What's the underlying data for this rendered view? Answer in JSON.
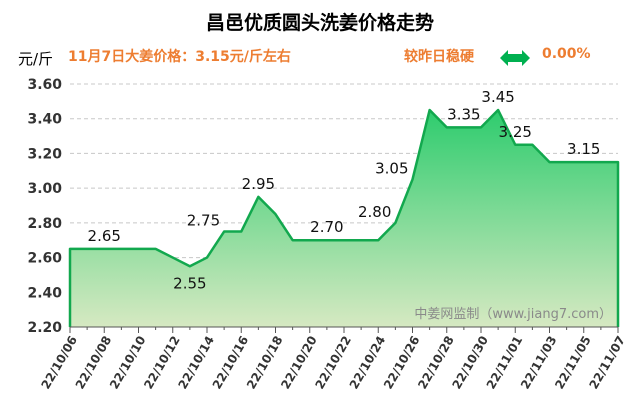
{
  "header": {
    "title": "昌邑优质圆头洗姜价格走势",
    "unit": "元/斤",
    "today_price": "11月7日大姜价格：3.15元/斤左右",
    "compare_text": "较昨日稳硬",
    "change_icon": "left-right-arrow-icon",
    "change_value": "0.00%",
    "accent_color": "#ed7d31",
    "arrow_color": "#00b050"
  },
  "chart_data": {
    "type": "area",
    "title": "昌邑优质圆头洗姜价格走势",
    "ylabel": "元/斤",
    "ylim": [
      2.2,
      3.6
    ],
    "yticks": [
      "2.20",
      "2.40",
      "2.60",
      "2.80",
      "3.00",
      "3.20",
      "3.40",
      "3.60"
    ],
    "grid": true,
    "x": [
      "22/10/06",
      "22/10/07",
      "22/10/08",
      "22/10/09",
      "22/10/10",
      "22/10/11",
      "22/10/12",
      "22/10/13",
      "22/10/14",
      "22/10/15",
      "22/10/16",
      "22/10/17",
      "22/10/18",
      "22/10/19",
      "22/10/20",
      "22/10/21",
      "22/10/22",
      "22/10/23",
      "22/10/24",
      "22/10/25",
      "22/10/26",
      "22/10/27",
      "22/10/28",
      "22/10/29",
      "22/10/30",
      "22/10/31",
      "22/11/01",
      "22/11/02",
      "22/11/03",
      "22/11/04",
      "22/11/05",
      "22/11/06",
      "22/11/07"
    ],
    "xtick_labels": [
      "22/10/06",
      "22/10/08",
      "22/10/10",
      "22/10/12",
      "22/10/14",
      "22/10/16",
      "22/10/18",
      "22/10/20",
      "22/10/22",
      "22/10/24",
      "22/10/26",
      "22/10/28",
      "22/10/30",
      "22/11/01",
      "22/11/03",
      "22/11/05",
      "22/11/07"
    ],
    "values": [
      2.65,
      2.65,
      2.65,
      2.65,
      2.65,
      2.65,
      2.6,
      2.55,
      2.6,
      2.75,
      2.75,
      2.95,
      2.85,
      2.7,
      2.7,
      2.7,
      2.7,
      2.7,
      2.7,
      2.8,
      3.05,
      3.45,
      3.35,
      3.35,
      3.35,
      3.45,
      3.25,
      3.25,
      3.15,
      3.15,
      3.15,
      3.15,
      3.15
    ],
    "data_labels": [
      {
        "index": 2,
        "text": "2.65",
        "pos": "above"
      },
      {
        "index": 7,
        "text": "2.55",
        "pos": "below"
      },
      {
        "index": 9,
        "text": "2.75",
        "pos": "left"
      },
      {
        "index": 11,
        "text": "2.95",
        "pos": "above"
      },
      {
        "index": 15,
        "text": "2.70",
        "pos": "above"
      },
      {
        "index": 19,
        "text": "2.80",
        "pos": "left"
      },
      {
        "index": 20,
        "text": "3.05",
        "pos": "left"
      },
      {
        "index": 23,
        "text": "3.35",
        "pos": "above"
      },
      {
        "index": 25,
        "text": "3.45",
        "pos": "above"
      },
      {
        "index": 26,
        "text": "3.25",
        "pos": "above"
      },
      {
        "index": 30,
        "text": "3.15",
        "pos": "above"
      }
    ],
    "watermark": "中姜网监制（www.jiang7.com）",
    "line_color": "#12a84e",
    "fill_top": "#2ecc6e",
    "fill_bottom": "#d6e9c2"
  }
}
